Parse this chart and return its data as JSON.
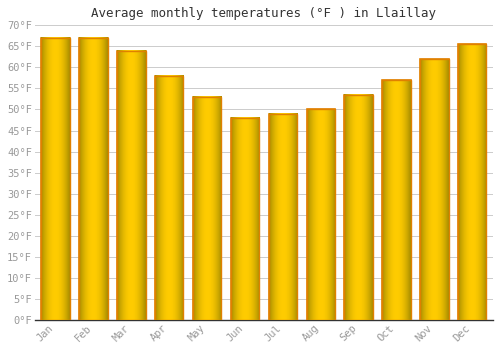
{
  "title": "Average monthly temperatures (°F ) in Llaillay",
  "months": [
    "Jan",
    "Feb",
    "Mar",
    "Apr",
    "May",
    "Jun",
    "Jul",
    "Aug",
    "Sep",
    "Oct",
    "Nov",
    "Dec"
  ],
  "values": [
    67,
    67,
    64,
    58,
    53,
    48,
    49,
    50,
    53.5,
    57,
    62,
    65.5
  ],
  "bar_color_center": "#FFB700",
  "bar_color_edge": "#E08000",
  "ylim": [
    0,
    70
  ],
  "yticks": [
    0,
    5,
    10,
    15,
    20,
    25,
    30,
    35,
    40,
    45,
    50,
    55,
    60,
    65,
    70
  ],
  "ytick_labels": [
    "0°F",
    "5°F",
    "10°F",
    "15°F",
    "20°F",
    "25°F",
    "30°F",
    "35°F",
    "40°F",
    "45°F",
    "50°F",
    "55°F",
    "60°F",
    "65°F",
    "70°F"
  ],
  "title_fontsize": 9,
  "tick_fontsize": 7.5,
  "background_color": "#ffffff",
  "plot_bg_color": "#ffffff",
  "grid_color": "#cccccc",
  "tick_color": "#999999",
  "spine_color": "#333333"
}
